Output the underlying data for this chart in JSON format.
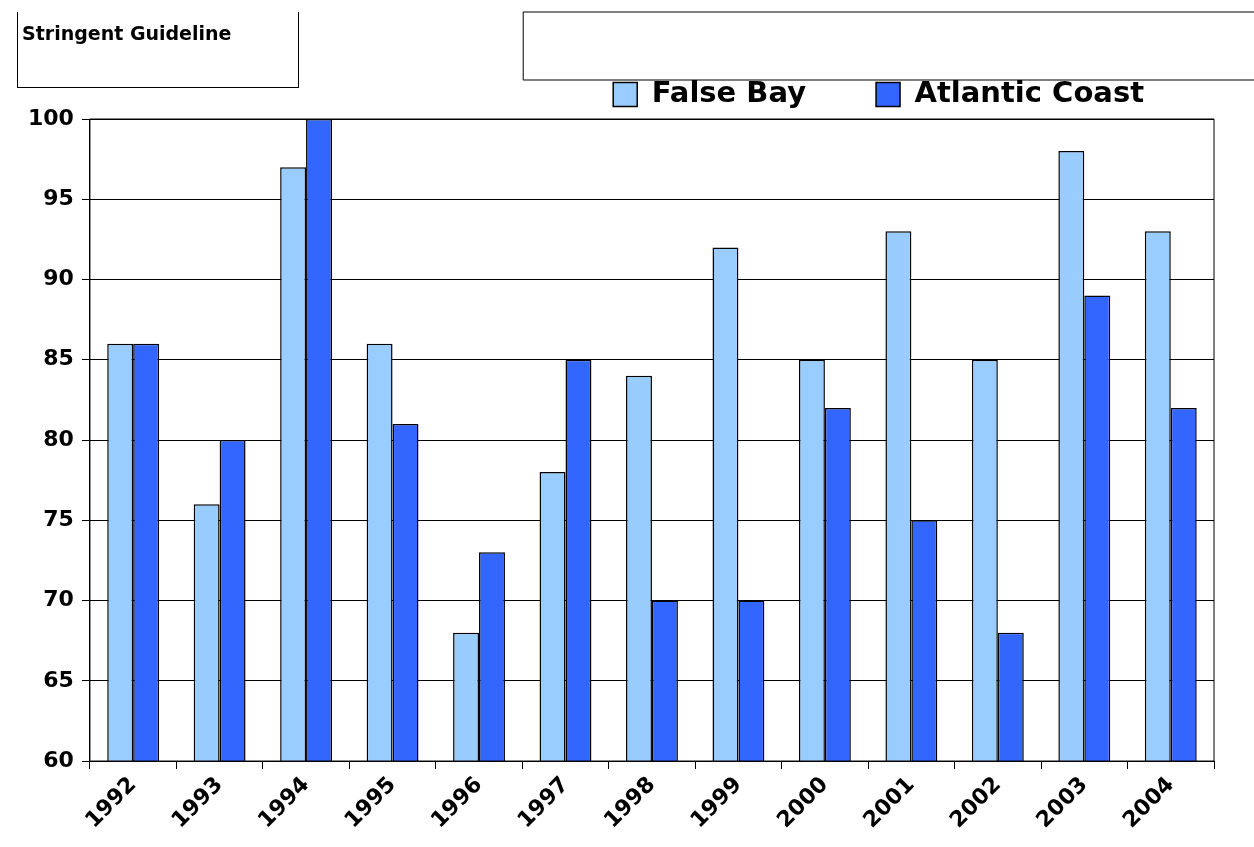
{
  "chart_data": {
    "type": "bar",
    "title": "Stringent Guideline",
    "categories": [
      "1992",
      "1993",
      "1994",
      "1995",
      "1996",
      "1997",
      "1998",
      "1999",
      "2000",
      "2001",
      "2002",
      "2003",
      "2004"
    ],
    "series": [
      {
        "name": "False Bay",
        "color": "#99ccff",
        "values": [
          86,
          76,
          97,
          86,
          68,
          78,
          84,
          92,
          85,
          93,
          85,
          98,
          93
        ]
      },
      {
        "name": "Atlantic Coast",
        "color": "#3366ff",
        "values": [
          86,
          80,
          100,
          81,
          73,
          85,
          70,
          70,
          82,
          75,
          68,
          89,
          82
        ]
      }
    ],
    "ylim": [
      60,
      100
    ],
    "yticks": [
      60,
      65,
      70,
      75,
      80,
      85,
      90,
      95,
      100
    ],
    "grid": "y",
    "legend": "top right"
  }
}
